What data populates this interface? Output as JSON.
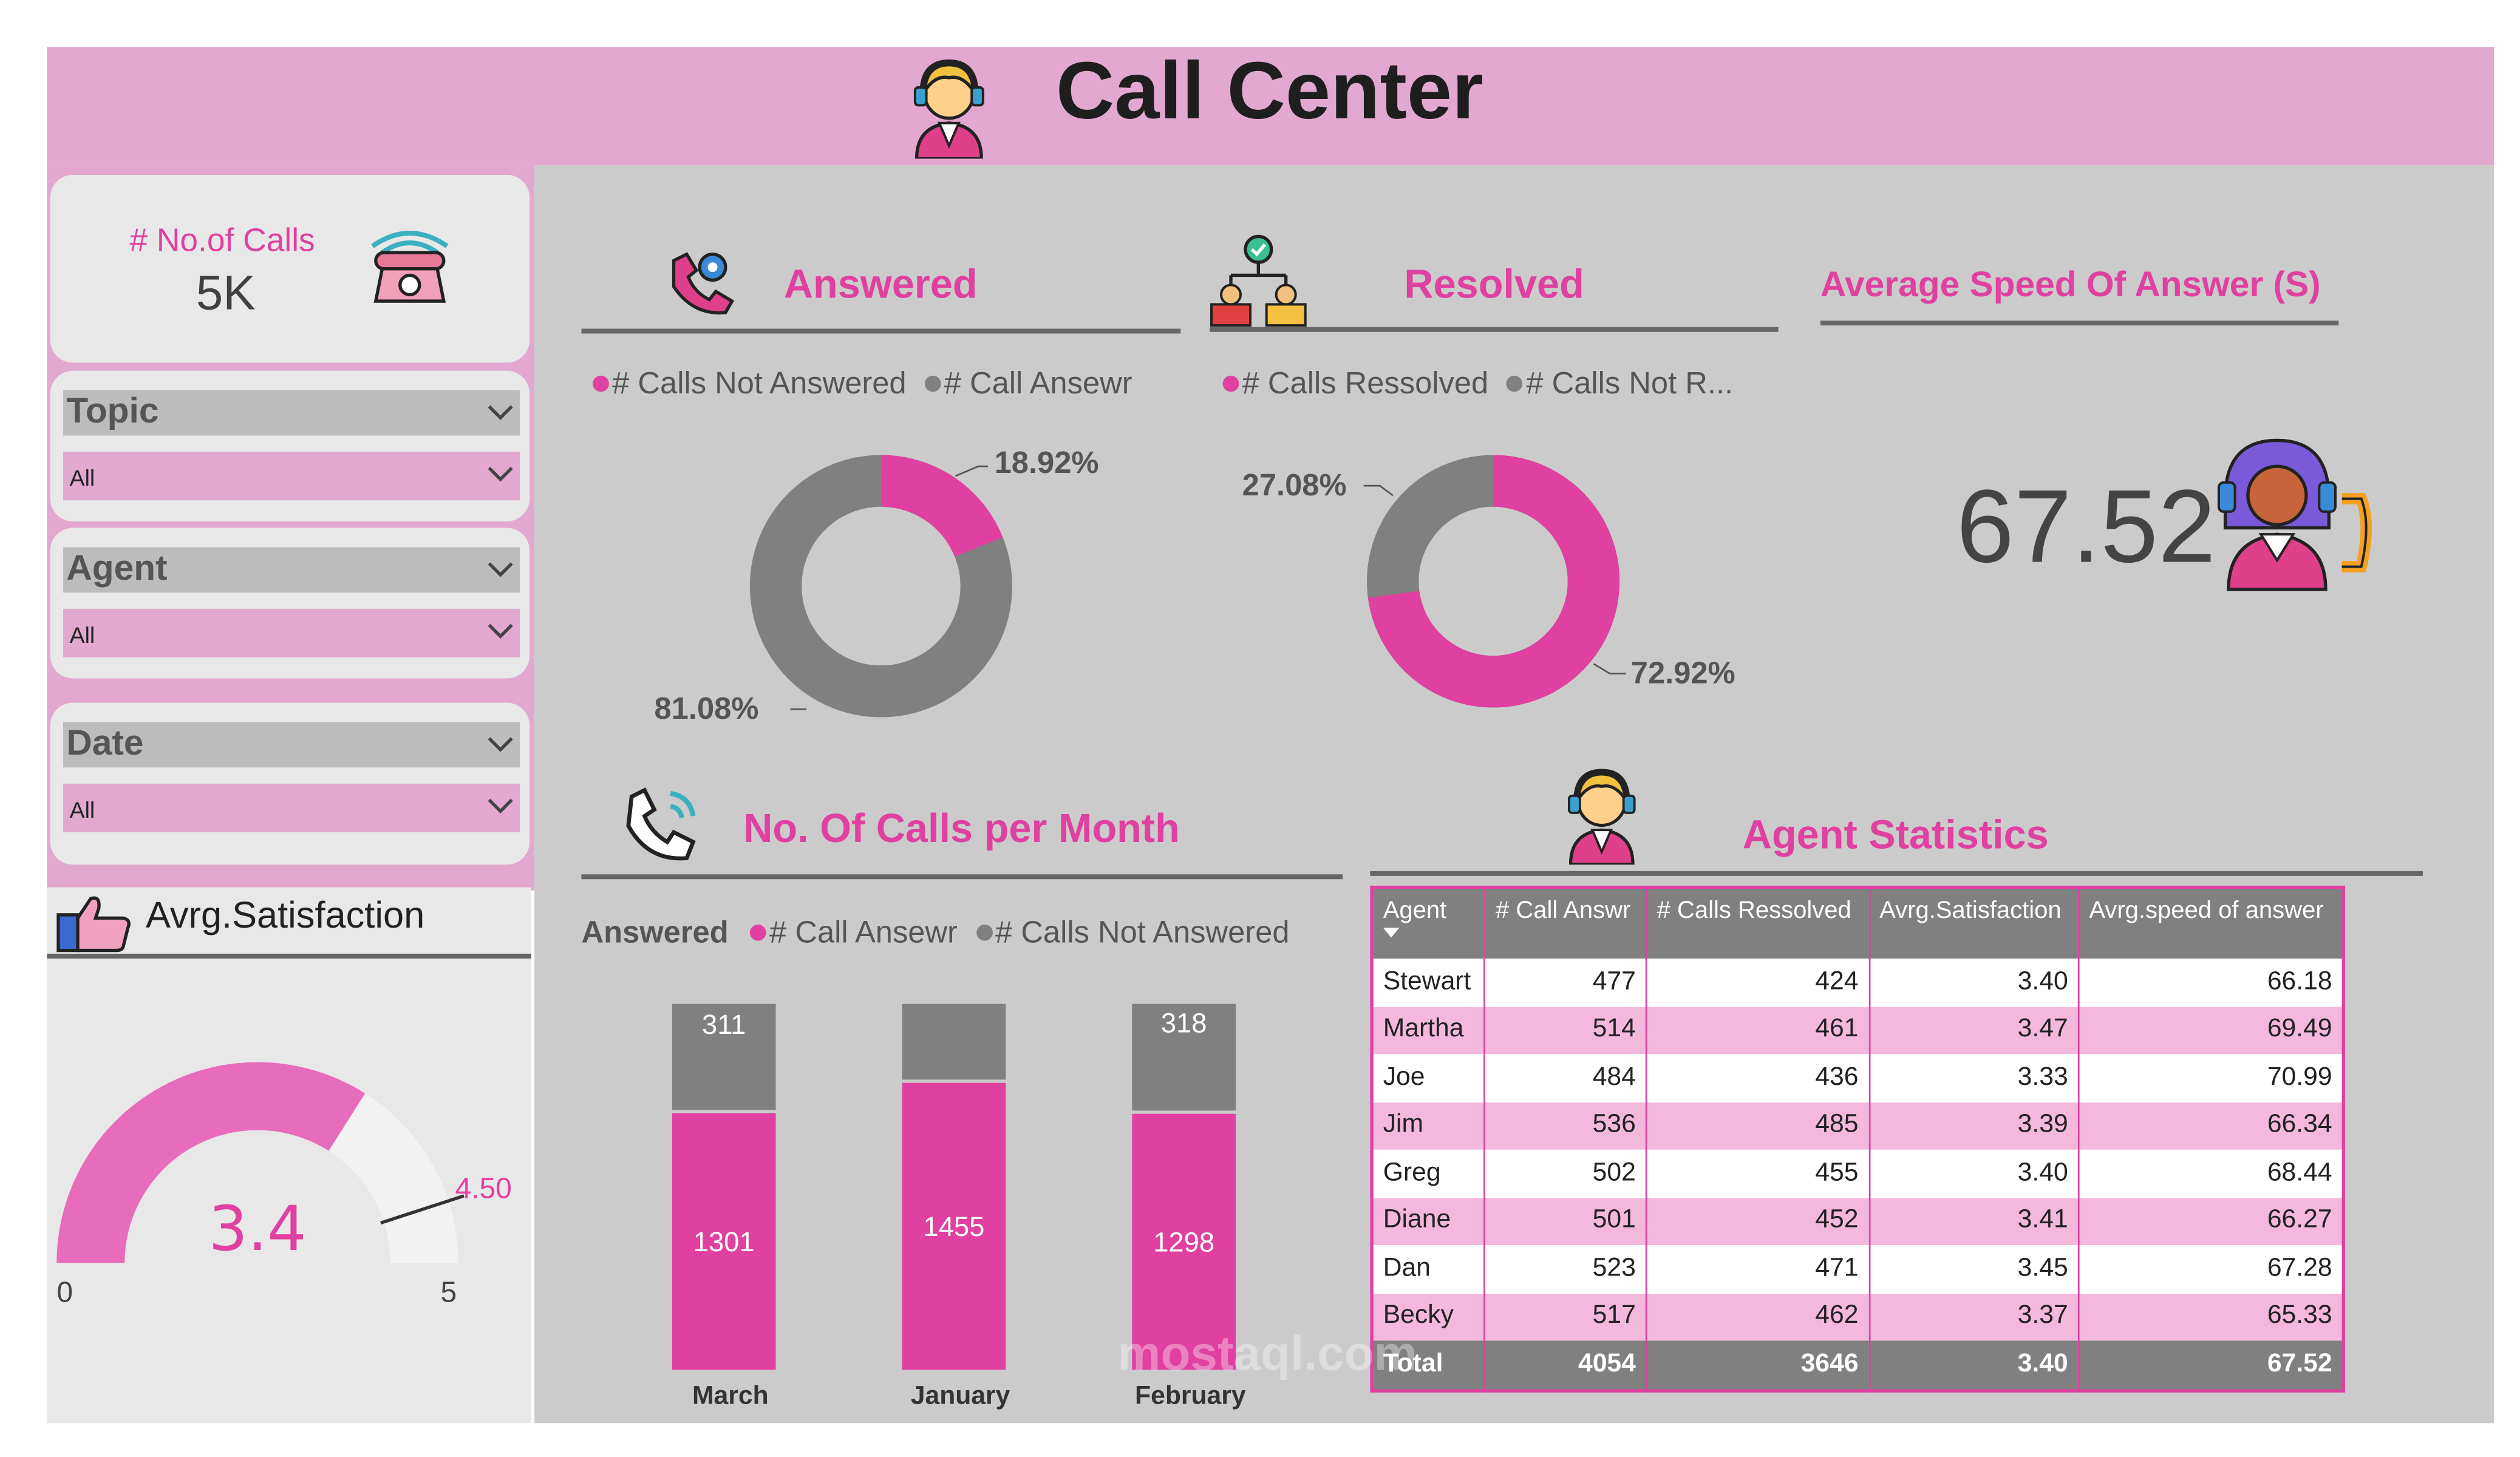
{
  "header": {
    "title": "Call Center"
  },
  "calls_card": {
    "label": "# No.of Calls",
    "value": "5K"
  },
  "slicers": [
    {
      "title": "Topic",
      "value": "All"
    },
    {
      "title": "Agent",
      "value": "All"
    },
    {
      "title": "Date",
      "value": "All"
    }
  ],
  "answered": {
    "title": "Answered",
    "legend": [
      "# Calls Not Answered",
      "# Call Ansewr"
    ],
    "pct_not_answered": "18.92%",
    "pct_answered": "81.08%"
  },
  "resolved": {
    "title": "Resolved",
    "legend": [
      "# Calls Ressolved",
      "# Calls Not R..."
    ],
    "pct_not_resolved": "27.08%",
    "pct_resolved": "72.92%"
  },
  "asa": {
    "title": "Average Speed Of Answer (S)",
    "value": "67.52"
  },
  "gauge": {
    "title": "Avrg.Satisfaction",
    "value": "3.4",
    "target": "4.50",
    "min": "0",
    "max": "5"
  },
  "monthly": {
    "title": "No. Of Calls per Month",
    "legend_title": "Answered",
    "legend": [
      "# Call Ansewr",
      "# Calls Not Answered"
    ]
  },
  "agent_stats": {
    "title": "Agent Statistics",
    "columns": [
      "Agent",
      "# Call Answr",
      "# Calls Ressolved",
      "Avrg.Satisfaction",
      "Avrg.speed of answer"
    ],
    "rows": [
      [
        "Stewart",
        "477",
        "424",
        "3.40",
        "66.18"
      ],
      [
        "Martha",
        "514",
        "461",
        "3.47",
        "69.49"
      ],
      [
        "Joe",
        "484",
        "436",
        "3.33",
        "70.99"
      ],
      [
        "Jim",
        "536",
        "485",
        "3.39",
        "66.34"
      ],
      [
        "Greg",
        "502",
        "455",
        "3.40",
        "68.44"
      ],
      [
        "Diane",
        "501",
        "452",
        "3.41",
        "66.27"
      ],
      [
        "Dan",
        "523",
        "471",
        "3.45",
        "67.28"
      ],
      [
        "Becky",
        "517",
        "462",
        "3.37",
        "65.33"
      ]
    ],
    "total": [
      "Total",
      "4054",
      "3646",
      "3.40",
      "67.52"
    ]
  },
  "colors": {
    "pink": "#e040a0",
    "gray": "#808080",
    "light_pink": "#e2a8cf"
  },
  "watermark": "mostaql.com",
  "chart_data": [
    {
      "type": "pie",
      "title": "Answered",
      "labels": [
        "# Calls Not Answered",
        "# Call Ansewr"
      ],
      "values": [
        18.92,
        81.08
      ],
      "colors": [
        "#e040a0",
        "#808080"
      ]
    },
    {
      "type": "pie",
      "title": "Resolved",
      "labels": [
        "# Calls Ressolved",
        "# Calls Not R..."
      ],
      "values": [
        72.92,
        27.08
      ],
      "colors": [
        "#e040a0",
        "#808080"
      ]
    },
    {
      "type": "bar",
      "title": "No. Of Calls per Month",
      "categories": [
        "March",
        "January",
        "February"
      ],
      "series": [
        {
          "name": "# Call Ansewr",
          "values": [
            1301,
            1455,
            1298
          ],
          "color": "#e040a0"
        },
        {
          "name": "# Calls Not Answered",
          "values": [
            311,
            317,
            318
          ],
          "color": "#808080"
        }
      ]
    },
    {
      "type": "gauge",
      "title": "Avrg.Satisfaction",
      "value": 3.4,
      "target": 4.5,
      "min": 0,
      "max": 5
    }
  ]
}
